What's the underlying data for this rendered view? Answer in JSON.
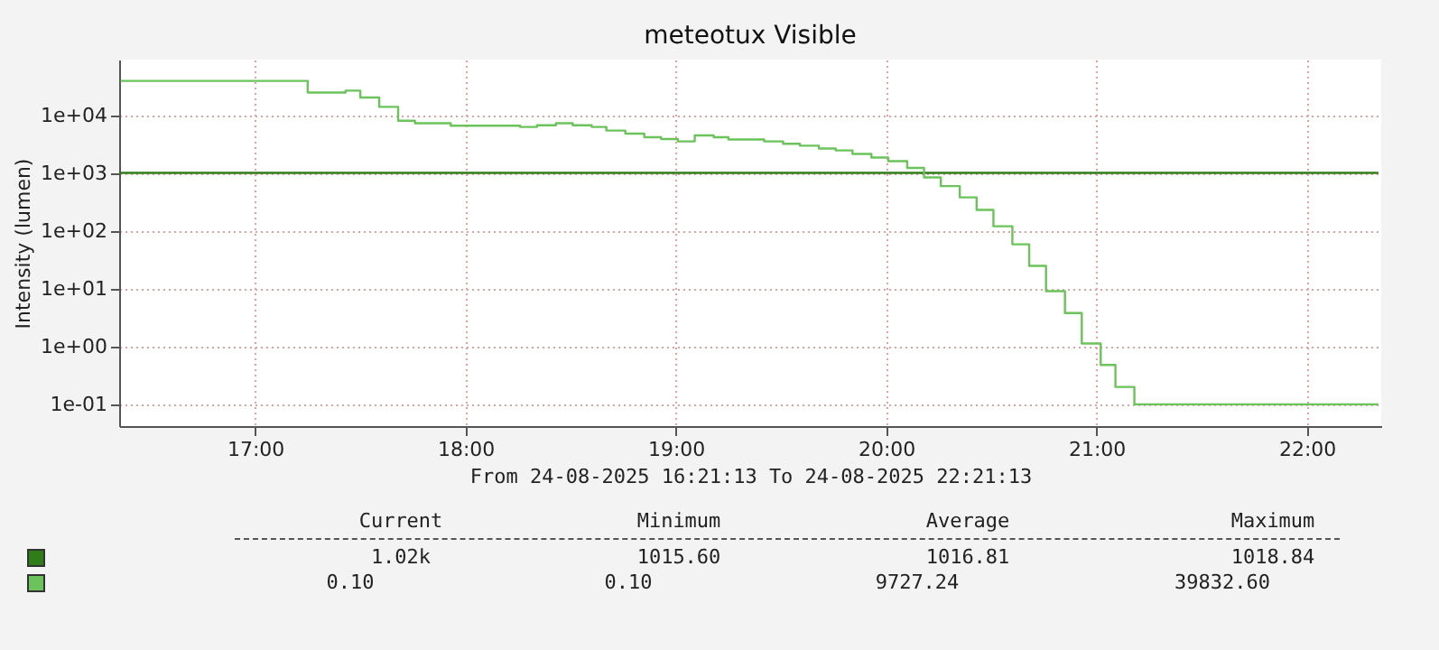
{
  "chart_data": {
    "type": "step",
    "title": "meteotux Visible",
    "xlabel": "From 24-08-2025 16:21:13 To 24-08-2025 22:21:13",
    "ylabel": "Intensity (lumen)",
    "series": [
      {
        "color": "#2f7d18",
        "x": [
          16.36,
          22.34
        ],
        "values": [
          1016.81,
          1016.81
        ]
      },
      {
        "color": "#6cc35c",
        "x": [
          16.36,
          17.25,
          17.43,
          17.5,
          17.59,
          17.68,
          17.76,
          17.93,
          18.26,
          18.34,
          18.43,
          18.51,
          18.6,
          18.67,
          18.76,
          18.85,
          18.93,
          19.01,
          19.09,
          19.18,
          19.25,
          19.42,
          19.51,
          19.59,
          19.68,
          19.76,
          19.84,
          19.93,
          20.01,
          20.1,
          20.18,
          20.26,
          20.35,
          20.43,
          20.51,
          20.6,
          20.68,
          20.76,
          20.85,
          20.93,
          21.02,
          21.09,
          21.18,
          22.34
        ],
        "values": [
          39800,
          25000,
          27000,
          20500,
          14100,
          8100,
          7350,
          6650,
          6350,
          6800,
          7350,
          6800,
          6350,
          5500,
          4870,
          4220,
          3920,
          3570,
          4530,
          4220,
          3840,
          3570,
          3240,
          3010,
          2680,
          2490,
          2160,
          1870,
          1620,
          1240,
          850,
          600,
          383,
          232,
          121,
          59,
          25,
          9.1,
          3.8,
          1.13,
          0.48,
          0.2,
          0.1,
          0.1
        ]
      }
    ],
    "xlim": [
      16.3536,
      22.3536
    ],
    "xticks": [
      {
        "value": 17,
        "label": "17:00"
      },
      {
        "value": 18,
        "label": "18:00"
      },
      {
        "value": 19,
        "label": "19:00"
      },
      {
        "value": 20,
        "label": "20:00"
      },
      {
        "value": 21,
        "label": "21:00"
      },
      {
        "value": 22,
        "label": "22:00"
      }
    ],
    "ylim": [
      0.042,
      93000
    ],
    "yticks": [
      {
        "value": 0.1,
        "label": "1e-01"
      },
      {
        "value": 1,
        "label": "1e+00"
      },
      {
        "value": 10,
        "label": "1e+01"
      },
      {
        "value": 100,
        "label": "1e+02"
      },
      {
        "value": 1000,
        "label": "1e+03"
      },
      {
        "value": 10000,
        "label": "1e+04"
      }
    ],
    "log": "y",
    "grid": true,
    "annotations": [
      "Current",
      "Minimum",
      "Average",
      "Maximum",
      "1.02k",
      "1015.60",
      "1016.81",
      "1018.84",
      "0.10",
      "0.10",
      "9727.24",
      "39832.60"
    ]
  }
}
